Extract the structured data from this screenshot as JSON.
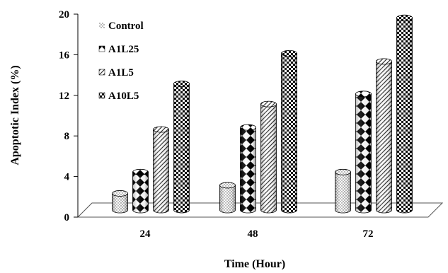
{
  "chart_data": {
    "type": "bar",
    "style": "3d-cylinder",
    "xlabel": "Time (Hour)",
    "ylabel": "Apoptotic Index (%)",
    "categories": [
      "24",
      "48",
      "72"
    ],
    "ylim": [
      0,
      20
    ],
    "yticks": [
      0,
      4,
      8,
      12,
      16,
      20
    ],
    "grid": false,
    "legend_position": "top-left",
    "series": [
      {
        "name": "Control",
        "pattern": "dots",
        "values": [
          2.2,
          3.0,
          4.3
        ]
      },
      {
        "name": "A1L25",
        "pattern": "diamonds",
        "values": [
          4.3,
          8.7,
          12.0
        ]
      },
      {
        "name": "A1L5",
        "pattern": "diagonal-stripes",
        "values": [
          8.5,
          11.0,
          15.2
        ]
      },
      {
        "name": "A10L5",
        "pattern": "checkerboard",
        "values": [
          13.0,
          16.0,
          19.5
        ]
      }
    ]
  }
}
